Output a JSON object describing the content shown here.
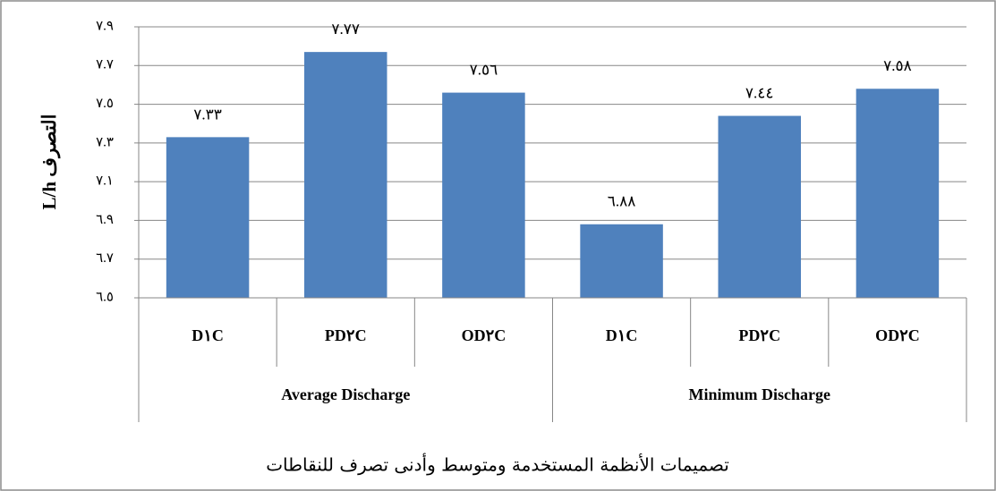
{
  "chart_data": {
    "type": "bar",
    "y_axis_label": "L/h التصرف",
    "x_axis_label": "تصميمات الأنظمة المستخدمة ومتوسط وأدنى تصرف للنقاطات",
    "group_labels": [
      "Average Discharge",
      "Minimum Discharge"
    ],
    "categories": [
      "D١C",
      "PD٢C",
      "OD٢C",
      "D١C",
      "PD٢C",
      "OD٢C"
    ],
    "values": [
      7.33,
      7.77,
      7.56,
      6.88,
      7.44,
      7.58
    ],
    "value_labels": [
      "٧.٣٣",
      "٧.٧٧",
      "٧.٥٦",
      "٦.٨٨",
      "٧.٤٤",
      "٧.٥٨"
    ],
    "color": "#4f81bd",
    "ylim": [
      6.5,
      7.9
    ],
    "yticks": [
      {
        "value": 6.5,
        "label": "٦.٥"
      },
      {
        "value": 6.7,
        "label": "٦.٧"
      },
      {
        "value": 6.9,
        "label": "٦.٩"
      },
      {
        "value": 7.1,
        "label": "٧.١"
      },
      {
        "value": 7.3,
        "label": "٧.٣"
      },
      {
        "value": 7.5,
        "label": "٧.٥"
      },
      {
        "value": 7.7,
        "label": "٧.٧"
      },
      {
        "value": 7.9,
        "label": "٧.٩"
      }
    ],
    "grid": true
  }
}
